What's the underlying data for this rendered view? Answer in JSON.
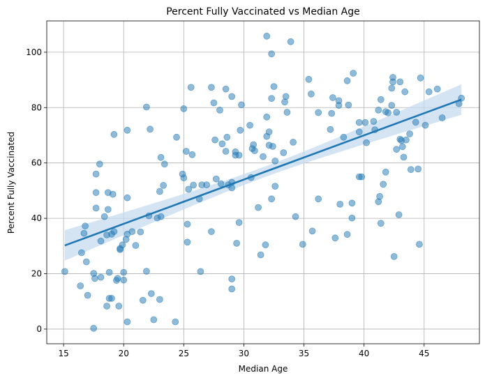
{
  "chart_data": {
    "type": "scatter",
    "title": "Percent Fully Vaccinated vs Median Age",
    "xlabel": "Median Age",
    "ylabel": "Percent Fully Vaccinated",
    "xlim": [
      13.6,
      49.6
    ],
    "ylim": [
      -5.3,
      111.3
    ],
    "xticks": [
      15,
      20,
      25,
      30,
      35,
      40,
      45
    ],
    "yticks": [
      0,
      20,
      40,
      60,
      80,
      100
    ],
    "grid": true,
    "colors": {
      "points": "#1f77b4",
      "regression_line": "#1f77b4",
      "confidence_band": "#c6dbef"
    },
    "regression": {
      "x": [
        15.1,
        48.1
      ],
      "y": [
        30.2,
        82.9
      ],
      "ci_half_width_ends": 5.5,
      "ci_half_width_center": 1.9
    },
    "points": [
      [
        15.1,
        20.8
      ],
      [
        16.4,
        15.6
      ],
      [
        16.5,
        27.6
      ],
      [
        16.7,
        34.6
      ],
      [
        16.8,
        37.2
      ],
      [
        16.9,
        24.3
      ],
      [
        17.0,
        12.2
      ],
      [
        17.5,
        0.3
      ],
      [
        17.5,
        20.1
      ],
      [
        17.6,
        18.3
      ],
      [
        17.7,
        43.7
      ],
      [
        17.7,
        49.3
      ],
      [
        17.7,
        56.0
      ],
      [
        18.0,
        59.6
      ],
      [
        18.1,
        18.7
      ],
      [
        18.1,
        31.8
      ],
      [
        18.4,
        40.6
      ],
      [
        18.6,
        8.3
      ],
      [
        18.6,
        34.0
      ],
      [
        18.7,
        43.2
      ],
      [
        18.7,
        49.3
      ],
      [
        18.8,
        11.1
      ],
      [
        18.8,
        20.5
      ],
      [
        19.0,
        11.1
      ],
      [
        19.0,
        34.3
      ],
      [
        19.1,
        48.7
      ],
      [
        19.2,
        35.2
      ],
      [
        19.2,
        70.3
      ],
      [
        19.4,
        17.6
      ],
      [
        19.5,
        18.3
      ],
      [
        19.6,
        8.3
      ],
      [
        19.7,
        29.1
      ],
      [
        19.7,
        28.7
      ],
      [
        19.9,
        30.4
      ],
      [
        20.0,
        20.5
      ],
      [
        20.0,
        17.7
      ],
      [
        20.2,
        32.4
      ],
      [
        20.3,
        34.3
      ],
      [
        20.3,
        2.6
      ],
      [
        20.3,
        47.4
      ],
      [
        20.3,
        71.8
      ],
      [
        20.7,
        35.2
      ],
      [
        21.0,
        30.2
      ],
      [
        21.4,
        35.1
      ],
      [
        21.6,
        10.4
      ],
      [
        21.9,
        20.9
      ],
      [
        21.9,
        80.2
      ],
      [
        22.1,
        40.9
      ],
      [
        22.2,
        72.2
      ],
      [
        22.3,
        12.8
      ],
      [
        22.5,
        3.4
      ],
      [
        22.8,
        40.1
      ],
      [
        23.0,
        10.7
      ],
      [
        23.0,
        49.7
      ],
      [
        23.1,
        62.0
      ],
      [
        23.1,
        40.6
      ],
      [
        23.3,
        51.9
      ],
      [
        23.4,
        59.6
      ],
      [
        24.3,
        2.6
      ],
      [
        24.4,
        69.3
      ],
      [
        24.9,
        56.0
      ],
      [
        25.0,
        79.6
      ],
      [
        25.0,
        54.6
      ],
      [
        25.2,
        64.2
      ],
      [
        25.3,
        37.9
      ],
      [
        25.3,
        31.4
      ],
      [
        25.4,
        50.5
      ],
      [
        25.6,
        87.3
      ],
      [
        25.7,
        63.0
      ],
      [
        25.8,
        52.0
      ],
      [
        26.3,
        47.0
      ],
      [
        26.4,
        20.8
      ],
      [
        26.5,
        52.1
      ],
      [
        26.9,
        52.1
      ],
      [
        27.3,
        35.2
      ],
      [
        27.3,
        87.3
      ],
      [
        27.5,
        81.7
      ],
      [
        27.6,
        68.3
      ],
      [
        27.7,
        54.2
      ],
      [
        28.0,
        79.1
      ],
      [
        28.1,
        52.5
      ],
      [
        28.2,
        66.9
      ],
      [
        28.5,
        86.7
      ],
      [
        28.5,
        64.2
      ],
      [
        28.6,
        69.3
      ],
      [
        28.7,
        52.1
      ],
      [
        29.0,
        84.0
      ],
      [
        29.0,
        18.1
      ],
      [
        29.0,
        14.5
      ],
      [
        29.0,
        53.0
      ],
      [
        29.0,
        51.0
      ],
      [
        29.3,
        64.0
      ],
      [
        29.3,
        62.8
      ],
      [
        29.4,
        31.0
      ],
      [
        29.6,
        38.5
      ],
      [
        29.6,
        62.8
      ],
      [
        29.7,
        71.8
      ],
      [
        29.8,
        81.0
      ],
      [
        30.5,
        73.6
      ],
      [
        30.6,
        54.7
      ],
      [
        30.7,
        65.2
      ],
      [
        30.8,
        66.6
      ],
      [
        30.9,
        64.4
      ],
      [
        31.2,
        43.9
      ],
      [
        31.4,
        26.8
      ],
      [
        31.6,
        62.3
      ],
      [
        31.8,
        30.4
      ],
      [
        31.9,
        69.6
      ],
      [
        31.9,
        76.6
      ],
      [
        31.9,
        105.8
      ],
      [
        32.1,
        66.4
      ],
      [
        32.1,
        71.2
      ],
      [
        32.3,
        99.4
      ],
      [
        32.3,
        83.3
      ],
      [
        32.3,
        47.0
      ],
      [
        32.4,
        66.0
      ],
      [
        32.5,
        87.6
      ],
      [
        32.6,
        60.7
      ],
      [
        32.6,
        51.6
      ],
      [
        33.3,
        63.7
      ],
      [
        33.4,
        82.0
      ],
      [
        33.5,
        84.0
      ],
      [
        33.6,
        78.3
      ],
      [
        33.9,
        103.8
      ],
      [
        34.1,
        67.5
      ],
      [
        34.3,
        40.6
      ],
      [
        34.9,
        30.6
      ],
      [
        35.4,
        90.2
      ],
      [
        35.6,
        84.9
      ],
      [
        35.7,
        35.4
      ],
      [
        36.2,
        78.2
      ],
      [
        36.2,
        47.0
      ],
      [
        37.2,
        72.1
      ],
      [
        37.3,
        77.9
      ],
      [
        37.4,
        83.6
      ],
      [
        37.6,
        32.9
      ],
      [
        37.9,
        82.5
      ],
      [
        37.9,
        80.8
      ],
      [
        38.0,
        45.1
      ],
      [
        38.3,
        69.3
      ],
      [
        38.6,
        89.7
      ],
      [
        38.6,
        34.2
      ],
      [
        38.7,
        80.9
      ],
      [
        39.0,
        40.1
      ],
      [
        39.0,
        45.5
      ],
      [
        39.1,
        92.4
      ],
      [
        39.6,
        55.0
      ],
      [
        39.6,
        74.6
      ],
      [
        39.6,
        71.2
      ],
      [
        39.8,
        55.0
      ],
      [
        40.1,
        74.6
      ],
      [
        40.2,
        67.3
      ],
      [
        40.8,
        75.0
      ],
      [
        40.9,
        72.0
      ],
      [
        41.2,
        79.1
      ],
      [
        41.2,
        46.0
      ],
      [
        41.3,
        47.9
      ],
      [
        41.4,
        38.2
      ],
      [
        41.4,
        82.9
      ],
      [
        41.6,
        52.3
      ],
      [
        41.8,
        56.7
      ],
      [
        41.8,
        78.5
      ],
      [
        42.0,
        78.1
      ],
      [
        42.3,
        87.0
      ],
      [
        42.3,
        80.8
      ],
      [
        42.4,
        89.3
      ],
      [
        42.4,
        90.9
      ],
      [
        42.5,
        26.2
      ],
      [
        42.7,
        78.3
      ],
      [
        42.7,
        64.9
      ],
      [
        42.9,
        41.3
      ],
      [
        43.0,
        89.3
      ],
      [
        43.0,
        68.6
      ],
      [
        43.1,
        68.1
      ],
      [
        43.2,
        65.9
      ],
      [
        43.3,
        62.1
      ],
      [
        43.4,
        85.7
      ],
      [
        43.5,
        68.3
      ],
      [
        43.8,
        70.5
      ],
      [
        43.9,
        57.6
      ],
      [
        44.3,
        74.7
      ],
      [
        44.5,
        57.8
      ],
      [
        44.6,
        30.6
      ],
      [
        44.7,
        90.7
      ],
      [
        45.1,
        73.6
      ],
      [
        45.4,
        85.7
      ],
      [
        46.1,
        86.7
      ],
      [
        46.5,
        76.3
      ],
      [
        47.9,
        81.4
      ],
      [
        48.1,
        83.4
      ]
    ]
  }
}
